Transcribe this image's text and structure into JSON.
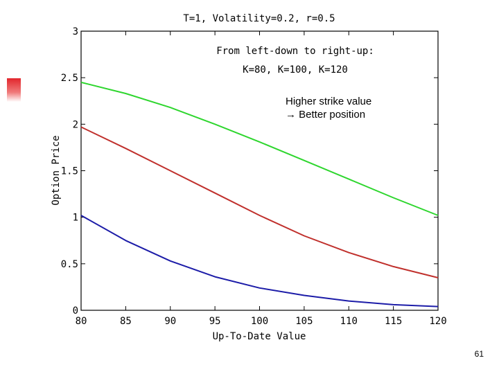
{
  "slide_number": "61",
  "colors": {
    "k80": "#1c1ca8",
    "k100": "#c0302c",
    "k120": "#2ed62e",
    "decoration": "#e2262c"
  },
  "chart_data": {
    "type": "line",
    "title": "T=1,  Volatility=0.2, r=0.5",
    "xlabel": "Up-To-Date Value",
    "ylabel": "Option Price",
    "xlim": [
      80,
      120
    ],
    "ylim": [
      0,
      3
    ],
    "x_ticks": [
      80,
      85,
      90,
      95,
      100,
      105,
      110,
      115,
      120
    ],
    "y_ticks": [
      0,
      0.5,
      1,
      1.5,
      2,
      2.5,
      3
    ],
    "y_tick_labels": [
      "0",
      "0.5",
      "1",
      "1.5",
      "2",
      "2.5",
      "3"
    ],
    "grid": false,
    "x": [
      80,
      85,
      90,
      95,
      100,
      105,
      110,
      115,
      120
    ],
    "series": [
      {
        "color": "#1c1ca8",
        "values": [
          1.02,
          0.75,
          0.53,
          0.36,
          0.24,
          0.16,
          0.1,
          0.06,
          0.04
        ]
      },
      {
        "color": "#c0302c",
        "values": [
          1.97,
          1.74,
          1.5,
          1.26,
          1.02,
          0.8,
          0.62,
          0.47,
          0.35
        ]
      },
      {
        "color": "#2ed62e",
        "values": [
          2.45,
          2.33,
          2.18,
          2.0,
          1.81,
          1.61,
          1.41,
          1.21,
          1.02
        ]
      }
    ],
    "annotations": {
      "order_line1": "From left-down to right-up:",
      "order_line2": "K=80, K=100, K=120",
      "note_line1": "Higher strike value",
      "note_line2": "→ Better position"
    }
  }
}
